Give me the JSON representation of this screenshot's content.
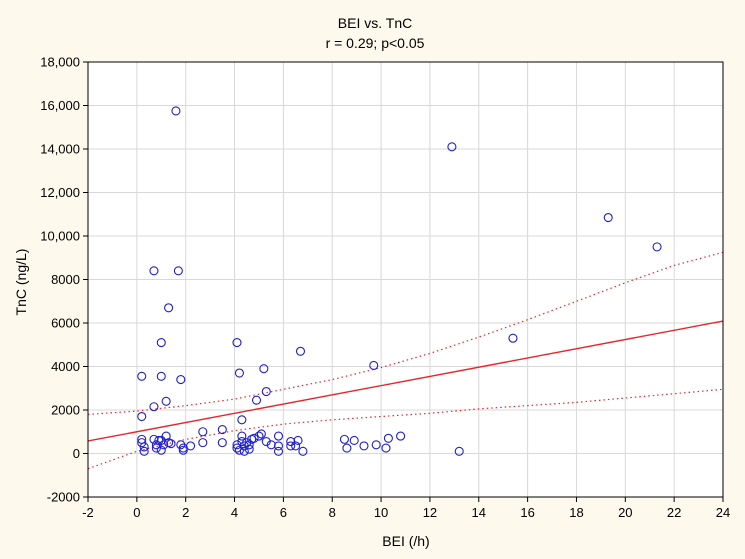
{
  "chart_data": {
    "type": "scatter",
    "title": "BEI vs. TnC",
    "subtitle": "r = 0.29; p<0.05",
    "xlabel": "BEI (/h)",
    "ylabel": "TnC (ng/L)",
    "xlim": [
      -2,
      24
    ],
    "ylim": [
      -2000,
      18000
    ],
    "xticks": [
      -2,
      0,
      2,
      4,
      6,
      8,
      10,
      12,
      14,
      16,
      18,
      20,
      22,
      24
    ],
    "yticks": [
      -2000,
      0,
      2000,
      4000,
      6000,
      8000,
      10000,
      12000,
      14000,
      16000,
      18000
    ],
    "ytick_labels": [
      "-2000",
      "0",
      "2000",
      "4000",
      "6000",
      "8000",
      "10,000",
      "12,000",
      "14,000",
      "16,000",
      "18,000"
    ],
    "grid": true,
    "point_color": "#1f1fd0",
    "fit_color": "#e8262a",
    "grid_color": "#d8d8d8",
    "points": [
      [
        0.2,
        3550
      ],
      [
        0.2,
        1700
      ],
      [
        0.2,
        650
      ],
      [
        0.2,
        500
      ],
      [
        0.3,
        300
      ],
      [
        0.3,
        100
      ],
      [
        0.7,
        8400
      ],
      [
        0.7,
        2150
      ],
      [
        0.7,
        650
      ],
      [
        0.8,
        400
      ],
      [
        0.8,
        250
      ],
      [
        0.9,
        600
      ],
      [
        1.0,
        5100
      ],
      [
        1.0,
        3550
      ],
      [
        1.0,
        150
      ],
      [
        1.0,
        600
      ],
      [
        1.1,
        400
      ],
      [
        1.2,
        2400
      ],
      [
        1.2,
        800
      ],
      [
        1.3,
        6700
      ],
      [
        1.3,
        500
      ],
      [
        1.4,
        450
      ],
      [
        1.6,
        15750
      ],
      [
        1.7,
        8400
      ],
      [
        1.8,
        3400
      ],
      [
        1.8,
        400
      ],
      [
        1.9,
        150
      ],
      [
        1.9,
        250
      ],
      [
        2.2,
        350
      ],
      [
        2.7,
        1000
      ],
      [
        2.7,
        500
      ],
      [
        3.5,
        1100
      ],
      [
        3.5,
        500
      ],
      [
        4.1,
        5100
      ],
      [
        4.1,
        400
      ],
      [
        4.1,
        250
      ],
      [
        4.2,
        3700
      ],
      [
        4.2,
        150
      ],
      [
        4.3,
        1550
      ],
      [
        4.3,
        800
      ],
      [
        4.3,
        550
      ],
      [
        4.4,
        350
      ],
      [
        4.4,
        100
      ],
      [
        4.5,
        500
      ],
      [
        4.6,
        200
      ],
      [
        4.6,
        400
      ],
      [
        4.7,
        650
      ],
      [
        4.8,
        700
      ],
      [
        4.9,
        2450
      ],
      [
        5.0,
        800
      ],
      [
        5.1,
        900
      ],
      [
        5.2,
        3900
      ],
      [
        5.3,
        2850
      ],
      [
        5.3,
        550
      ],
      [
        5.5,
        400
      ],
      [
        5.8,
        800
      ],
      [
        5.8,
        350
      ],
      [
        5.8,
        100
      ],
      [
        6.3,
        550
      ],
      [
        6.3,
        350
      ],
      [
        6.5,
        350
      ],
      [
        6.6,
        600
      ],
      [
        6.7,
        4700
      ],
      [
        6.8,
        100
      ],
      [
        8.5,
        650
      ],
      [
        8.6,
        250
      ],
      [
        8.9,
        600
      ],
      [
        9.3,
        350
      ],
      [
        9.7,
        4050
      ],
      [
        9.8,
        400
      ],
      [
        10.2,
        250
      ],
      [
        10.3,
        700
      ],
      [
        10.8,
        800
      ],
      [
        12.9,
        14100
      ],
      [
        13.2,
        100
      ],
      [
        15.4,
        5300
      ],
      [
        19.3,
        10850
      ],
      [
        21.3,
        9500
      ]
    ],
    "fit_line": {
      "intercept": 1000,
      "slope": 212
    },
    "ci_upper": [
      [
        -2,
        1800
      ],
      [
        0,
        1950
      ],
      [
        2,
        2200
      ],
      [
        4,
        2500
      ],
      [
        6,
        2950
      ],
      [
        8,
        3400
      ],
      [
        10,
        3950
      ],
      [
        12,
        4600
      ],
      [
        14,
        5350
      ],
      [
        16,
        6150
      ],
      [
        18,
        7000
      ],
      [
        20,
        7850
      ],
      [
        22,
        8650
      ],
      [
        24,
        9250
      ]
    ],
    "ci_lower": [
      [
        -2,
        -700
      ],
      [
        0,
        100
      ],
      [
        2,
        650
      ],
      [
        4,
        1050
      ],
      [
        6,
        1350
      ],
      [
        8,
        1550
      ],
      [
        10,
        1700
      ],
      [
        12,
        1850
      ],
      [
        14,
        2050
      ],
      [
        16,
        2200
      ],
      [
        18,
        2350
      ],
      [
        20,
        2550
      ],
      [
        22,
        2750
      ],
      [
        24,
        2950
      ]
    ]
  }
}
